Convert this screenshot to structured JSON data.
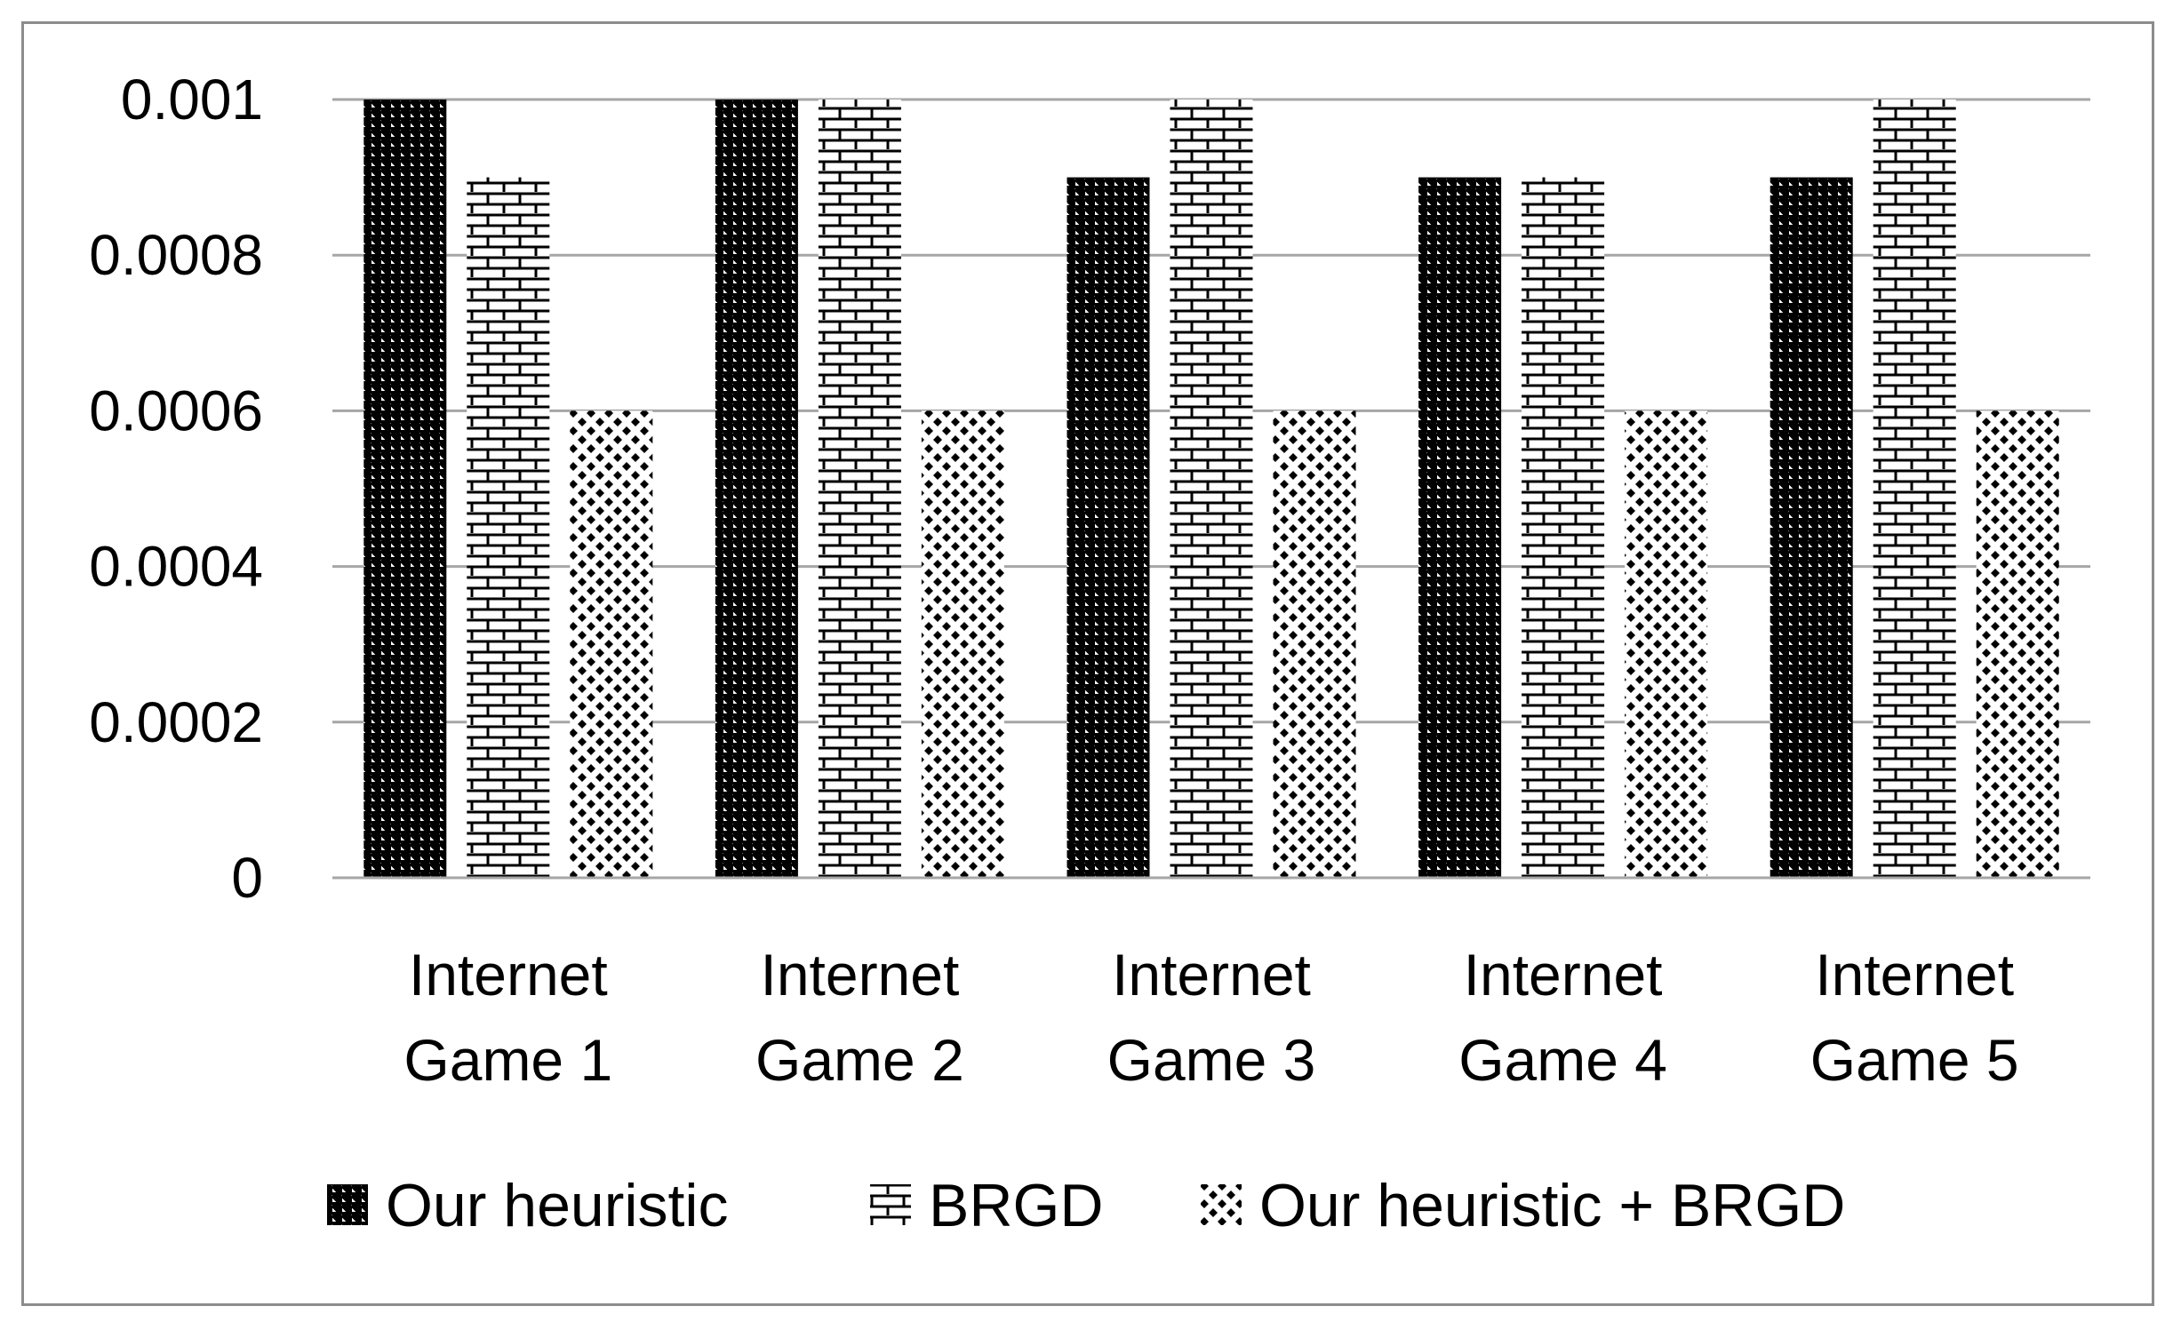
{
  "chart_data": {
    "type": "bar",
    "title": "",
    "xlabel": "",
    "ylabel": "",
    "categories": [
      [
        "Internet",
        "Game 1"
      ],
      [
        "Internet",
        "Game 2"
      ],
      [
        "Internet",
        "Game 3"
      ],
      [
        "Internet",
        "Game 4"
      ],
      [
        "Internet",
        "Game 5"
      ]
    ],
    "series": [
      {
        "name": "Our heuristic",
        "pattern": "diagonal-hatch",
        "values": [
          0.001,
          0.001,
          0.0009,
          0.0009,
          0.0009
        ]
      },
      {
        "name": "BRGD",
        "pattern": "brick",
        "values": [
          0.0009,
          0.001,
          0.001,
          0.0009,
          0.001
        ]
      },
      {
        "name": "Our heuristic + BRGD",
        "pattern": "diamond-dots",
        "values": [
          0.0006,
          0.0006,
          0.0006,
          0.0006,
          0.0006
        ]
      }
    ],
    "ylim": [
      0,
      0.001
    ],
    "yticks": [
      {
        "value": 0,
        "label": "0"
      },
      {
        "value": 0.0002,
        "label": "0.0002"
      },
      {
        "value": 0.0004,
        "label": "0.0004"
      },
      {
        "value": 0.0006,
        "label": "0.0006"
      },
      {
        "value": 0.0008,
        "label": "0.0008"
      },
      {
        "value": 0.001,
        "label": "0.001"
      }
    ],
    "grid": true,
    "legend_position": "bottom",
    "colors": {
      "bar_fill": "#000000",
      "background": "#ffffff",
      "gridline": "#a6a6a6",
      "frame": "#8c8c8c"
    }
  }
}
